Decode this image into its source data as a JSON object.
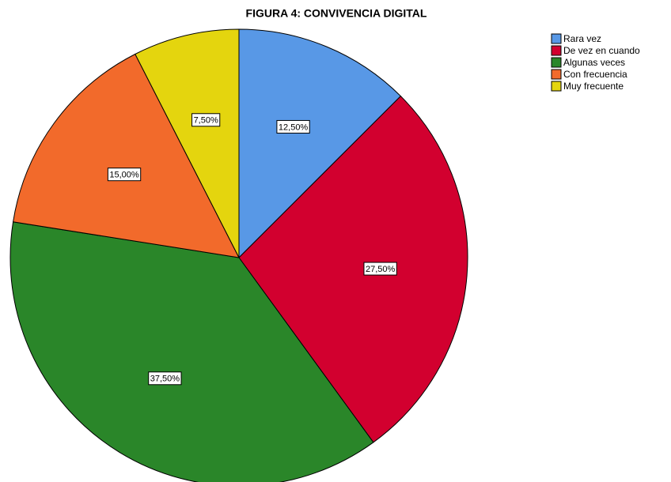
{
  "chart_data": {
    "type": "pie",
    "title": "FIGURA 4: CONVIVENCIA DIGITAL",
    "categories": [
      "Rara vez",
      "De vez en cuando",
      "Algunas veces",
      "Con frecuencia",
      "Muy frecuente"
    ],
    "values": [
      12.5,
      27.5,
      37.5,
      15,
      7.5
    ],
    "value_labels": [
      "12,50%",
      "27,50%",
      "37,50%",
      "15,00%",
      "7,50%"
    ],
    "colors": [
      "#5898e6",
      "#d2002f",
      "#2a8629",
      "#f26a2b",
      "#e4d50e"
    ],
    "legend": "right"
  }
}
